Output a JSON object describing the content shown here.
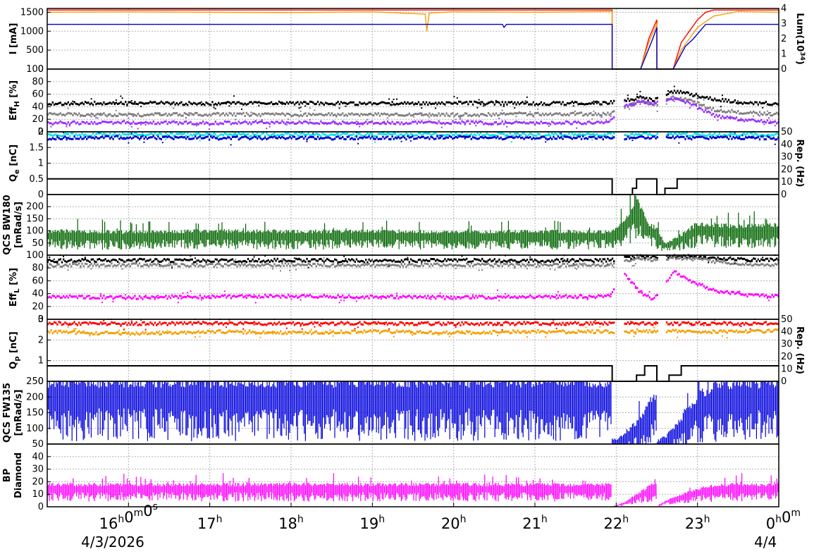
{
  "chart_data": [
    {
      "type": "line",
      "panel": "beam_currents",
      "ylabel": "I [mA]",
      "ylim": [
        0,
        1600
      ],
      "yticks": [
        "0",
        "500",
        "1000",
        "1500"
      ],
      "y2label": "Lum(10",
      "y2sup": "34",
      "y2label_close": ")",
      "y2ticks": [
        "0",
        "1",
        "2",
        "3",
        "4"
      ],
      "series": [
        {
          "color": "#ff0000",
          "x_hours": [
            15.0,
            21.95,
            21.95,
            22.3,
            22.4,
            22.5,
            22.5,
            22.7,
            22.8,
            22.9,
            23.0,
            23.1,
            23.2,
            23.5,
            24.0
          ],
          "values": [
            1560,
            1560,
            0,
            0,
            800,
            1300,
            0,
            0,
            700,
            1000,
            1300,
            1500,
            1560,
            1560,
            1560
          ]
        },
        {
          "color": "#f5a000",
          "x_hours": [
            15.0,
            16.0,
            17.0,
            18.0,
            19.0,
            19.65,
            19.67,
            19.7,
            20.0,
            21.0,
            21.95,
            21.95,
            22.3,
            22.4,
            22.5,
            22.5,
            22.7,
            22.8,
            22.9,
            23.0,
            23.2,
            23.5,
            24.0
          ],
          "values": [
            1500,
            1510,
            1500,
            1490,
            1510,
            1450,
            1000,
            1480,
            1510,
            1500,
            1520,
            0,
            0,
            700,
            1200,
            0,
            0,
            500,
            800,
            1100,
            1400,
            1520,
            1500
          ]
        },
        {
          "color": "#0000cc",
          "x_hours": [
            15.0,
            20.6,
            20.62,
            20.65,
            21.95,
            21.95,
            22.3,
            22.45,
            22.5,
            22.5,
            22.7,
            22.85,
            22.95,
            23.1,
            24.0
          ],
          "values": [
            1180,
            1180,
            1100,
            1180,
            1180,
            0,
            0,
            800,
            1100,
            0,
            0,
            600,
            800,
            1180,
            1180
          ]
        }
      ]
    },
    {
      "type": "scatter",
      "panel": "eff_h",
      "ylabel": "Eff",
      "ylabel_sub": "H",
      "ylabel_unit": "[%]",
      "ylim": [
        0,
        100
      ],
      "yticks": [
        "0",
        "20",
        "40",
        "60",
        "80",
        "100"
      ],
      "series": [
        {
          "color": "#000000",
          "x_hours": [
            15,
            16,
            17,
            18,
            19,
            20,
            21,
            21.9,
            22.1,
            22.3,
            22.45,
            22.7,
            22.9,
            23.2,
            23.6,
            24
          ],
          "values": [
            45,
            46,
            45,
            46,
            45,
            46,
            45,
            46,
            50,
            55,
            50,
            65,
            60,
            52,
            46,
            45
          ]
        },
        {
          "color": "#808080",
          "x_hours": [
            15,
            16,
            17,
            18,
            19,
            20,
            21,
            21.9,
            22.1,
            22.3,
            22.45,
            22.7,
            22.9,
            23.2,
            23.6,
            24
          ],
          "values": [
            28,
            27,
            28,
            27,
            28,
            27,
            28,
            28,
            40,
            50,
            42,
            55,
            50,
            35,
            30,
            28
          ]
        },
        {
          "color": "#9933ff",
          "x_hours": [
            15,
            16,
            17,
            18,
            19,
            20,
            21,
            21.9,
            22.1,
            22.3,
            22.45,
            22.7,
            22.9,
            23.2,
            23.6,
            24
          ],
          "values": [
            14,
            15,
            14,
            15,
            14,
            15,
            14,
            15,
            40,
            48,
            45,
            52,
            45,
            25,
            18,
            15
          ]
        }
      ]
    },
    {
      "type": "scatter",
      "panel": "qe",
      "ylabel": "Q",
      "ylabel_sub": "e",
      "ylabel_unit": "[nC]",
      "ylim": [
        0,
        2
      ],
      "yticks": [
        "0",
        "0.5",
        "1",
        "1.5",
        "2"
      ],
      "y2label": "Rep. (Hz)",
      "y2ticks": [
        "0",
        "10",
        "20",
        "30",
        "40",
        "50"
      ],
      "series": [
        {
          "color": "#00e5e5",
          "x_hours": [
            15,
            16,
            17,
            18,
            19,
            20,
            21,
            21.9,
            22.1,
            22.3,
            22.5,
            22.6,
            22.8,
            23.0,
            23.5,
            24
          ],
          "values": [
            1.9,
            1.92,
            1.9,
            1.91,
            1.9,
            1.92,
            1.9,
            1.91,
            1.9,
            1.92,
            1.9,
            1.91,
            1.92,
            1.9,
            1.91,
            1.9
          ]
        },
        {
          "color": "#0000cc",
          "x_hours": [
            15,
            16,
            17,
            18,
            19,
            20,
            21,
            21.9,
            22.1,
            22.3,
            22.5,
            22.6,
            22.8,
            23.0,
            23.5,
            24
          ],
          "values": [
            1.8,
            1.82,
            1.8,
            1.81,
            1.8,
            1.82,
            1.8,
            1.81,
            1.8,
            1.82,
            1.8,
            1.81,
            1.82,
            1.8,
            1.81,
            1.8
          ]
        },
        {
          "color": "#000000",
          "axis": "right",
          "x_hours": [
            15,
            21.95,
            21.95,
            22.2,
            22.2,
            22.25,
            22.25,
            22.5,
            22.5,
            22.6,
            22.6,
            22.75,
            22.75,
            24
          ],
          "values": [
            12.5,
            12.5,
            0,
            0,
            5,
            5,
            12.5,
            12.5,
            0,
            0,
            5,
            5,
            12.5,
            12.5
          ]
        }
      ]
    },
    {
      "type": "area",
      "panel": "qcs_bw180",
      "ylabel": "QCS BW180",
      "ylabel2": "[mRad/s]",
      "ylim": [
        0,
        250
      ],
      "yticks": [
        "50",
        "100",
        "150",
        "200"
      ],
      "series": [
        {
          "color": "#006400",
          "x_hours": [
            15,
            16,
            17,
            18,
            19,
            20,
            21,
            21.95,
            22.1,
            22.25,
            22.4,
            22.5,
            22.6,
            22.8,
            23.0,
            23.5,
            24
          ],
          "values": [
            85,
            80,
            85,
            82,
            85,
            80,
            83,
            82,
            120,
            200,
            110,
            90,
            40,
            70,
            110,
            100,
            105
          ]
        }
      ]
    },
    {
      "type": "scatter",
      "panel": "eff_l",
      "ylabel": "Eff",
      "ylabel_sub": "L",
      "ylabel_unit": "[%]",
      "ylim": [
        0,
        100
      ],
      "yticks": [
        "0",
        "20",
        "40",
        "60",
        "80",
        "100"
      ],
      "series": [
        {
          "color": "#000000",
          "x_hours": [
            15,
            16,
            17,
            18,
            19,
            20,
            21,
            21.9,
            22.1,
            22.3,
            22.45,
            22.7,
            22.9,
            23.2,
            23.6,
            24
          ],
          "values": [
            91,
            92,
            91,
            92,
            91,
            92,
            91,
            92,
            95,
            98,
            96,
            99,
            98,
            95,
            93,
            92
          ]
        },
        {
          "color": "#808080",
          "x_hours": [
            15,
            16,
            17,
            18,
            19,
            20,
            21,
            21.9,
            22.1,
            22.3,
            22.45,
            22.7,
            22.9,
            23.2,
            23.6,
            24
          ],
          "values": [
            84,
            85,
            84,
            85,
            84,
            85,
            84,
            85,
            90,
            95,
            92,
            96,
            95,
            90,
            86,
            85
          ]
        },
        {
          "color": "#ff00ff",
          "x_hours": [
            15,
            16,
            17,
            18,
            19,
            20,
            21,
            21.9,
            22.1,
            22.3,
            22.45,
            22.7,
            22.9,
            23.2,
            23.6,
            24
          ],
          "values": [
            35,
            34,
            35,
            36,
            35,
            34,
            35,
            36,
            70,
            40,
            30,
            75,
            60,
            45,
            38,
            36
          ]
        }
      ]
    },
    {
      "type": "scatter",
      "panel": "qp",
      "ylabel": "Q",
      "ylabel_sub": "p",
      "ylabel_unit": "[nC]",
      "ylim": [
        0,
        3
      ],
      "yticks": [
        "0",
        "1",
        "2",
        "3"
      ],
      "y2label": "Rep. (Hz)",
      "y2ticks": [
        "0",
        "10",
        "20",
        "30",
        "40",
        "50"
      ],
      "series": [
        {
          "color": "#ff0000",
          "x_hours": [
            15,
            16,
            17,
            18,
            19,
            20,
            21,
            21.9,
            22.1,
            22.3,
            22.5,
            22.6,
            22.8,
            23.0,
            23.5,
            24
          ],
          "values": [
            2.8,
            2.78,
            2.8,
            2.79,
            2.8,
            2.78,
            2.8,
            2.8,
            2.78,
            2.8,
            2.79,
            2.8,
            2.78,
            2.8,
            2.79,
            2.8
          ]
        },
        {
          "color": "#f5a000",
          "x_hours": [
            15,
            16,
            17,
            18,
            19,
            20,
            21,
            21.9,
            22.1,
            22.3,
            22.5,
            22.6,
            22.8,
            23.0,
            23.5,
            24
          ],
          "values": [
            2.4,
            2.3,
            2.4,
            2.35,
            2.4,
            2.35,
            2.4,
            2.4,
            2.4,
            2.45,
            2.4,
            2.4,
            2.45,
            2.4,
            2.4,
            2.45
          ]
        },
        {
          "color": "#000000",
          "axis": "right",
          "x_hours": [
            15,
            21.95,
            21.95,
            22.25,
            22.25,
            22.35,
            22.35,
            22.5,
            22.5,
            22.65,
            22.65,
            22.8,
            22.8,
            24
          ],
          "values": [
            12.5,
            12.5,
            0,
            0,
            5,
            5,
            12.5,
            12.5,
            0,
            0,
            5,
            5,
            12.5,
            12.5
          ]
        }
      ]
    },
    {
      "type": "area",
      "panel": "qcs_fw135",
      "ylabel": "QCS FW135",
      "ylabel2": "[mRad/s]",
      "ylim": [
        50,
        250
      ],
      "yticks": [
        "50",
        "100",
        "150",
        "200",
        "250"
      ],
      "series": [
        {
          "color": "#0000dd",
          "x_hours": [
            15,
            16,
            17,
            18,
            19,
            20,
            21,
            21.95,
            21.95,
            22.1,
            22.3,
            22.45,
            22.5,
            22.5,
            22.6,
            22.8,
            23.0,
            23.2,
            23.5,
            24
          ],
          "values": [
            210,
            212,
            210,
            211,
            210,
            212,
            210,
            210,
            50,
            70,
            110,
            170,
            175,
            50,
            60,
            110,
            170,
            200,
            205,
            210
          ]
        }
      ]
    },
    {
      "type": "area",
      "panel": "bp_diamond",
      "ylabel": "BP",
      "ylabel2": "Diamond",
      "ylim": [
        0,
        50
      ],
      "yticks": [
        "0",
        "10",
        "20",
        "30",
        "40"
      ],
      "series": [
        {
          "color": "#ff00ff",
          "x_hours": [
            15,
            16,
            17,
            18,
            19,
            20,
            21,
            21.95,
            21.95,
            22.1,
            22.3,
            22.45,
            22.5,
            22.5,
            22.6,
            22.8,
            23.0,
            23.2,
            23.5,
            24
          ],
          "values": [
            15,
            15,
            15,
            15,
            15,
            15,
            15,
            15,
            0,
            3,
            10,
            15,
            15,
            0,
            4,
            8,
            12,
            14,
            15,
            15
          ]
        }
      ]
    }
  ],
  "x_axis": {
    "xlim_hours": [
      15.0,
      24.0
    ],
    "ticks": [
      {
        "hour": 16,
        "label": "16",
        "unit": "h",
        "extra": "0",
        "extra_unit": "m",
        "extra2": "0",
        "extra2_unit": "s"
      },
      {
        "hour": 17,
        "label": "17",
        "unit": "h"
      },
      {
        "hour": 18,
        "label": "18",
        "unit": "h"
      },
      {
        "hour": 19,
        "label": "19",
        "unit": "h"
      },
      {
        "hour": 20,
        "label": "20",
        "unit": "h"
      },
      {
        "hour": 21,
        "label": "21",
        "unit": "h"
      },
      {
        "hour": 22,
        "label": "22",
        "unit": "h"
      },
      {
        "hour": 23,
        "label": "23",
        "unit": "h"
      },
      {
        "hour": 24,
        "label": "0",
        "unit": "h",
        "extra": "0",
        "extra_unit": "m"
      }
    ],
    "date_left": "4/3/2026",
    "date_right": "4/4",
    "grid": true
  }
}
